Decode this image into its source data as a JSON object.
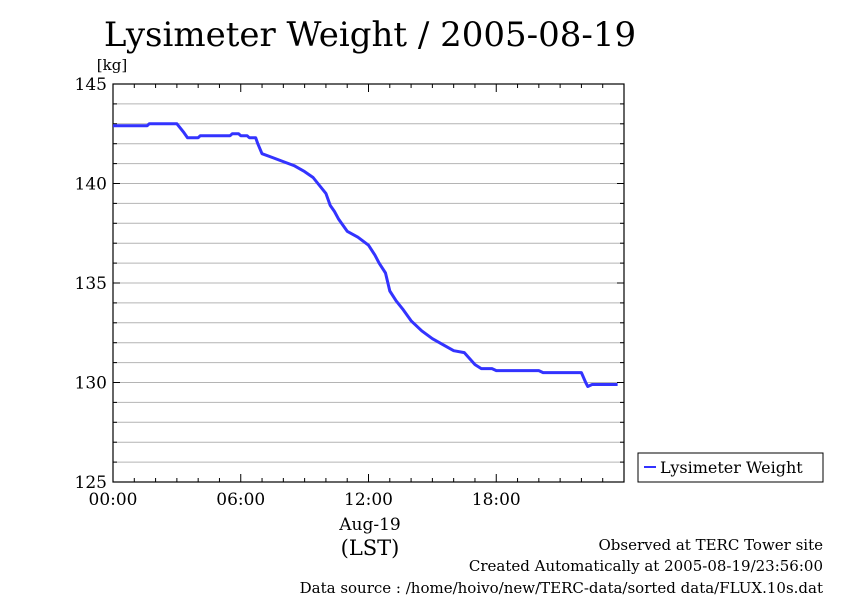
{
  "chart_data": {
    "type": "line",
    "title": "Lysimeter Weight / 2005-08-19",
    "ylabel": "[kg]",
    "xlabel_date": "Aug-19",
    "xlabel_tz": "(LST)",
    "ylim": [
      125,
      145
    ],
    "yticks": [
      125,
      130,
      135,
      140,
      145
    ],
    "xlim_hours": [
      0,
      24
    ],
    "xtick_labels": [
      "00:00",
      "06:00",
      "12:00",
      "18:00"
    ],
    "xtick_hours": [
      0,
      6,
      12,
      18
    ],
    "grid": true,
    "legend_placement": "right",
    "series": [
      {
        "name": "Lysimeter Weight",
        "color": "#3333ff",
        "x_hours": [
          0.0,
          1.6,
          1.7,
          3.0,
          3.3,
          3.5,
          4.0,
          4.1,
          5.5,
          5.6,
          5.9,
          6.0,
          6.3,
          6.4,
          6.7,
          6.8,
          7.0,
          7.5,
          8.0,
          8.5,
          9.0,
          9.4,
          9.7,
          10.0,
          10.2,
          10.4,
          10.6,
          11.0,
          11.5,
          12.0,
          12.3,
          12.5,
          12.8,
          13.0,
          13.3,
          13.6,
          13.8,
          14.0,
          14.5,
          15.0,
          15.5,
          16.0,
          16.5,
          17.0,
          17.3,
          17.5,
          17.8,
          18.0,
          18.7,
          18.8,
          20.0,
          20.2,
          21.0,
          22.0,
          22.2,
          22.3,
          22.5,
          23.7
        ],
        "y_kg": [
          142.9,
          142.9,
          143.0,
          143.0,
          142.6,
          142.3,
          142.3,
          142.4,
          142.4,
          142.5,
          142.5,
          142.4,
          142.4,
          142.3,
          142.3,
          142.0,
          141.5,
          141.3,
          141.1,
          140.9,
          140.6,
          140.3,
          139.9,
          139.5,
          138.9,
          138.6,
          138.2,
          137.6,
          137.3,
          136.9,
          136.4,
          136.0,
          135.5,
          134.6,
          134.1,
          133.7,
          133.4,
          133.1,
          132.6,
          132.2,
          131.9,
          131.6,
          131.5,
          130.9,
          130.7,
          130.7,
          130.7,
          130.6,
          130.6,
          130.6,
          130.6,
          130.5,
          130.5,
          130.5,
          130.0,
          129.8,
          129.9,
          129.9
        ]
      }
    ]
  },
  "footer": {
    "line1": "Observed at TERC Tower site",
    "line2": "Created Automatically at 2005-08-19/23:56:00",
    "line3": "Data source : /home/hoivo/new/TERC-data/sorted  data/FLUX.10s.dat"
  }
}
